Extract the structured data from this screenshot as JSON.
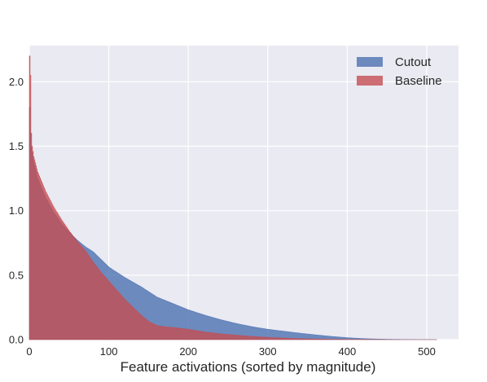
{
  "chart_data": {
    "type": "area",
    "title": "",
    "xlabel": "Feature activations (sorted by magnitude)",
    "ylabel": "",
    "xlim": [
      0,
      540
    ],
    "ylim": [
      0,
      2.28
    ],
    "grid": true,
    "legend_position": "top-right",
    "xticks": [
      0,
      100,
      200,
      300,
      400,
      500
    ],
    "xtick_labels": [
      "0",
      "100",
      "200",
      "300",
      "400",
      "500"
    ],
    "yticks": [
      0.0,
      0.5,
      1.0,
      1.5,
      2.0
    ],
    "ytick_labels": [
      "0.0",
      "0.5",
      "1.0",
      "1.5",
      "2.0"
    ],
    "series": [
      {
        "name": "Cutout",
        "color": "#4c72b0",
        "x": [
          0,
          1,
          2,
          3,
          5,
          10,
          20,
          30,
          40,
          50,
          60,
          70,
          80,
          90,
          100,
          120,
          140,
          160,
          180,
          200,
          220,
          240,
          260,
          280,
          300,
          320,
          340,
          360,
          380,
          400,
          420,
          440,
          460,
          480,
          500,
          512
        ],
        "y": [
          1.8,
          1.6,
          1.5,
          1.45,
          1.38,
          1.25,
          1.1,
          0.99,
          0.9,
          0.83,
          0.77,
          0.72,
          0.68,
          0.62,
          0.56,
          0.48,
          0.41,
          0.33,
          0.28,
          0.23,
          0.19,
          0.155,
          0.125,
          0.1,
          0.08,
          0.065,
          0.05,
          0.037,
          0.025,
          0.015,
          0.008,
          0.004,
          0.002,
          0.001,
          0.0005,
          0.0
        ]
      },
      {
        "name": "Baseline",
        "color": "#c44e52",
        "x": [
          0,
          1,
          2,
          3,
          5,
          10,
          20,
          30,
          40,
          50,
          60,
          70,
          80,
          90,
          100,
          110,
          120,
          130,
          140,
          150,
          160,
          170,
          180,
          200,
          220,
          240,
          260,
          280,
          300,
          320,
          340,
          360,
          380,
          400,
          420,
          440,
          460,
          480,
          500,
          512
        ],
        "y": [
          2.2,
          2.05,
          1.6,
          1.5,
          1.42,
          1.3,
          1.15,
          1.03,
          0.93,
          0.84,
          0.76,
          0.69,
          0.6,
          0.52,
          0.45,
          0.38,
          0.31,
          0.25,
          0.19,
          0.14,
          0.11,
          0.1,
          0.095,
          0.08,
          0.06,
          0.045,
          0.035,
          0.025,
          0.018,
          0.012,
          0.008,
          0.005,
          0.003,
          0.002,
          0.001,
          0.0005,
          0.0,
          0.0,
          0.0,
          0.0
        ]
      }
    ]
  },
  "style": {
    "plot_background": "#eaeaf2",
    "grid_color": "#ffffff",
    "text_color": "#262626"
  }
}
